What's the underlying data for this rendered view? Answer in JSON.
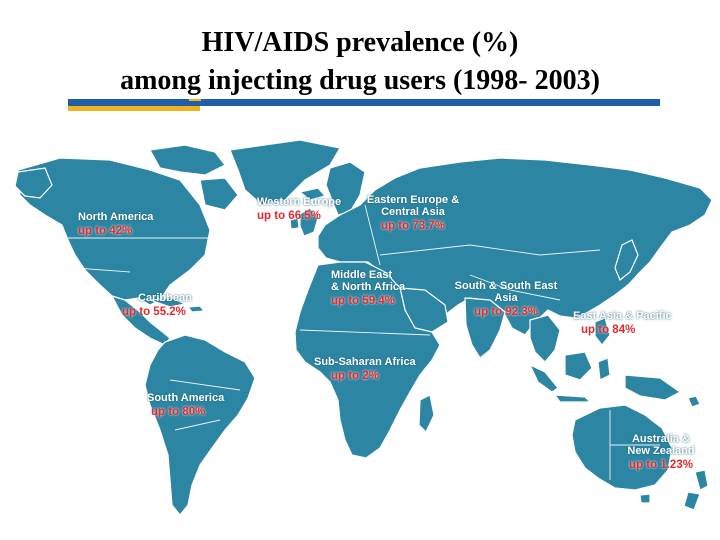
{
  "title": {
    "line1": "HIV/AIDS prevalence (%)",
    "line2": "among injecting drug users (1998- 2003)"
  },
  "colors": {
    "land": "#2c86a3",
    "label_name": "#ffffff",
    "label_value": "#e8282b",
    "rule_blue": "#1f5fa8",
    "rule_gold": "#f2b322"
  },
  "regions": [
    {
      "id": "north-america",
      "name": "North America",
      "prevalence": "up to 42%",
      "max_percent": 42
    },
    {
      "id": "western-europe",
      "name": "Western Europe",
      "prevalence": "up to 66.5%",
      "max_percent": 66.5
    },
    {
      "id": "eastern-europe",
      "name": "Eastern Europe &\nCentral Asia",
      "prevalence": "up to 73.7%",
      "max_percent": 73.7
    },
    {
      "id": "middle-east",
      "name": "Middle East\n& North Africa",
      "prevalence": "up to 59.4%",
      "max_percent": 59.4
    },
    {
      "id": "south-se-asia",
      "name": "South & South East\nAsia",
      "prevalence": "up to 92.3%",
      "max_percent": 92.3
    },
    {
      "id": "caribbean",
      "name": "Caribbean",
      "prevalence": "up to 55.2%",
      "max_percent": 55.2
    },
    {
      "id": "east-asia-pacific",
      "name": "East Asia & Pacific",
      "prevalence": "up to 84%",
      "max_percent": 84
    },
    {
      "id": "sub-saharan-africa",
      "name": "Sub-Saharan Africa",
      "prevalence": "up to 2%",
      "max_percent": 2
    },
    {
      "id": "south-america",
      "name": "South America",
      "prevalence": "up to 80%",
      "max_percent": 80
    },
    {
      "id": "australia-nz",
      "name": "Australia &\nNew Zealand",
      "prevalence": "up to 1.23%",
      "max_percent": 1.23
    }
  ]
}
